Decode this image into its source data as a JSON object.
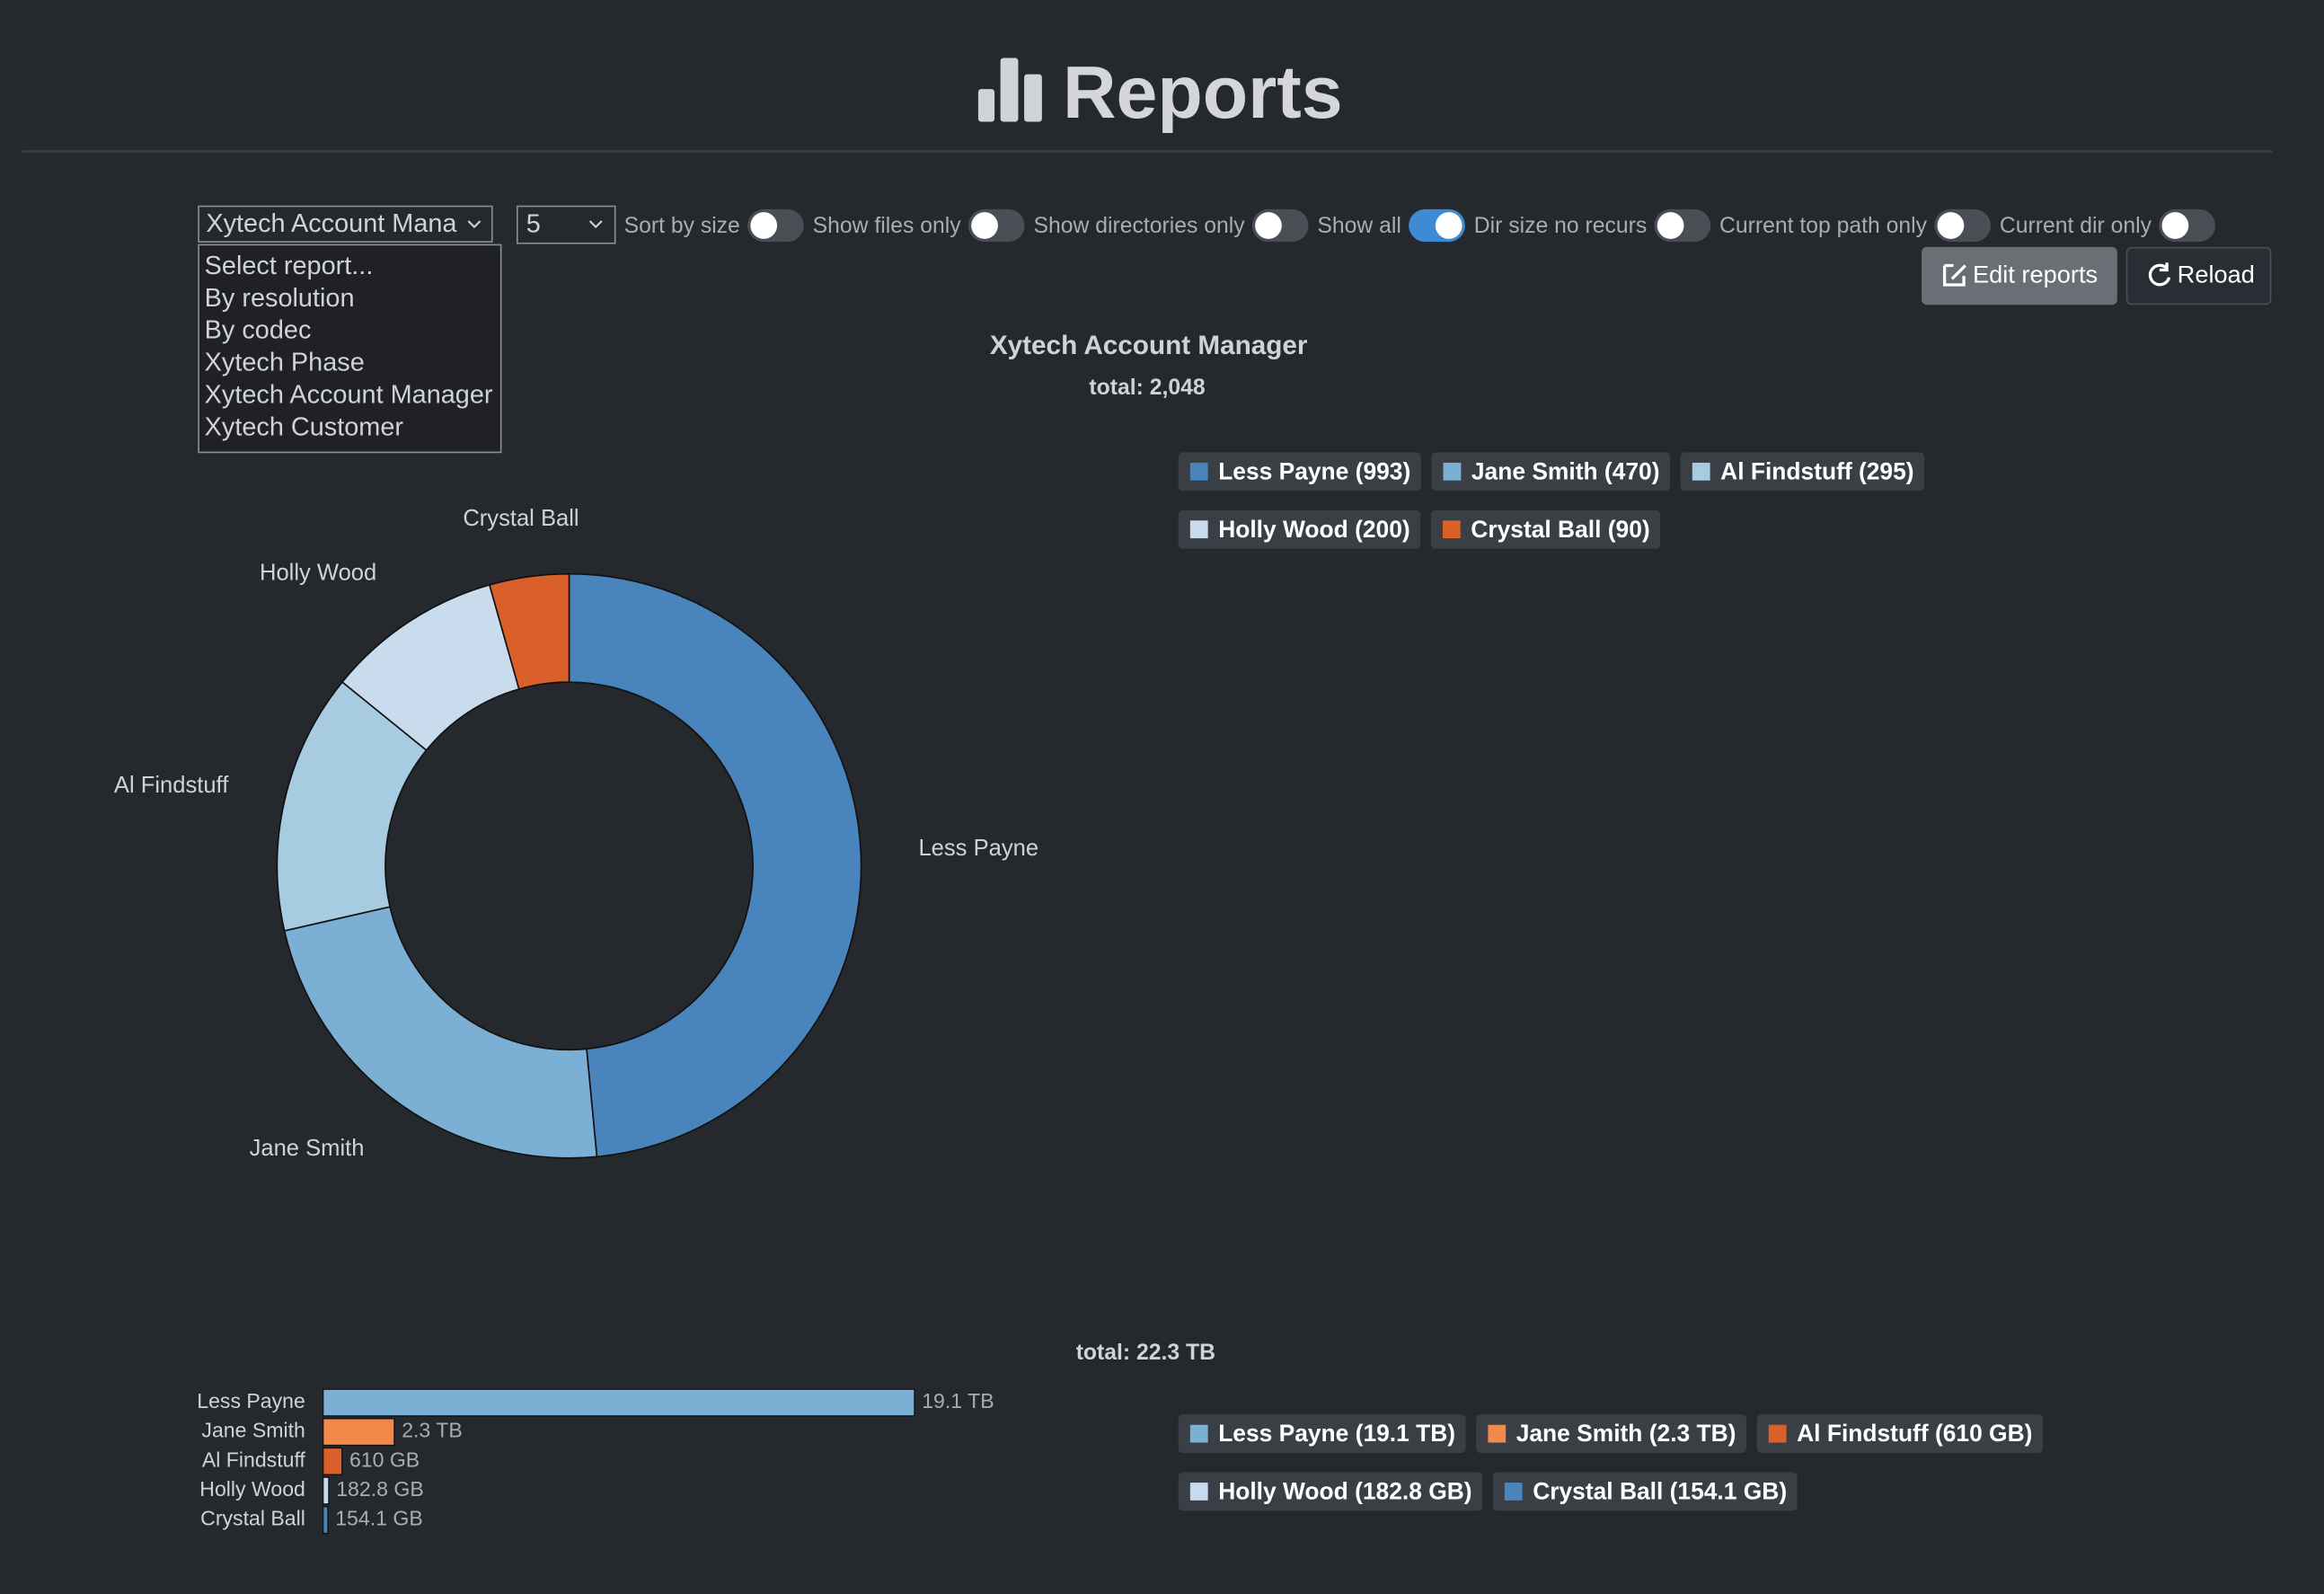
{
  "header": {
    "title": "Reports"
  },
  "controls": {
    "report_select": {
      "value": "Xytech Account Mana",
      "options": [
        "Select report...",
        "By resolution",
        "By codec",
        "Xytech Phase",
        "Xytech Account Manager",
        "Xytech Customer"
      ]
    },
    "count_select": {
      "value": "5"
    },
    "toggles": [
      {
        "label": "Sort by size",
        "on": false
      },
      {
        "label": "Show files only",
        "on": false
      },
      {
        "label": "Show directories only",
        "on": false
      },
      {
        "label": "Show all",
        "on": true
      },
      {
        "label": "Dir size no recurs",
        "on": false
      },
      {
        "label": "Current top path only",
        "on": false
      },
      {
        "label": "Current dir only",
        "on": false
      }
    ],
    "buttons": [
      "Edit reports",
      "Reload"
    ]
  },
  "chart_data": [
    {
      "type": "donut",
      "title": "Xytech Account Manager",
      "subtitle": "total: 2,048",
      "categories": [
        "Less Payne",
        "Jane Smith",
        "Al Findstuff",
        "Holly Wood",
        "Crystal Ball"
      ],
      "values": [
        993,
        470,
        295,
        200,
        90
      ],
      "colors": [
        "#4a84bd",
        "#7bafd4",
        "#a7cbe0",
        "#c9dcee",
        "#d9602b"
      ],
      "legend_labels": [
        "Less Payne (993)",
        "Jane Smith (470)",
        "Al Findstuff (295)",
        "Holly Wood (200)",
        "Crystal Ball (90)"
      ]
    },
    {
      "type": "bar",
      "orientation": "horizontal",
      "subtitle": "total: 22.3 TB",
      "categories": [
        "Less Payne",
        "Jane Smith",
        "Al Findstuff",
        "Holly Wood",
        "Crystal Ball"
      ],
      "values": [
        19100,
        2300,
        610,
        182.8,
        154.1
      ],
      "value_labels": [
        "19.1 TB",
        "2.3 TB",
        "610 GB",
        "182.8 GB",
        "154.1 GB"
      ],
      "colors": [
        "#7bafd4",
        "#f0894a",
        "#d95f2b",
        "#c6dbef",
        "#4a84bd"
      ],
      "legend_labels": [
        "Less Payne (19.1 TB)",
        "Jane Smith (2.3 TB)",
        "Al Findstuff (610 GB)",
        "Holly Wood (182.8 GB)",
        "Crystal Ball (154.1 GB)"
      ]
    }
  ]
}
